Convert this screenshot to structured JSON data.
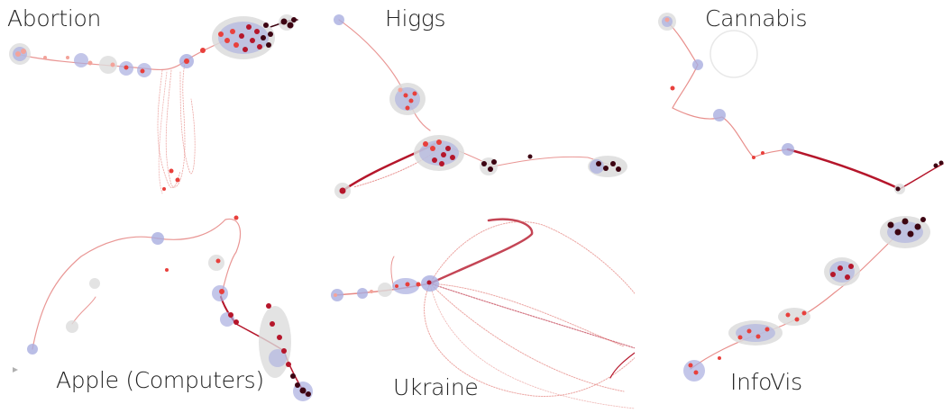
{
  "colors": {
    "early": "#f3a39a",
    "mid": "#e8403c",
    "late": "#b5162b",
    "latest": "#3d0412",
    "halo_blue": "#a9aee0",
    "halo_grey": "#dcdcdc",
    "edge": "#e06a66"
  },
  "panels": [
    {
      "title": "Abortion"
    },
    {
      "title": "Higgs"
    },
    {
      "title": "Cannabis"
    },
    {
      "title": "Apple (Computers)"
    },
    {
      "title": "Ukraine"
    },
    {
      "title": "InfoVis"
    }
  ]
}
